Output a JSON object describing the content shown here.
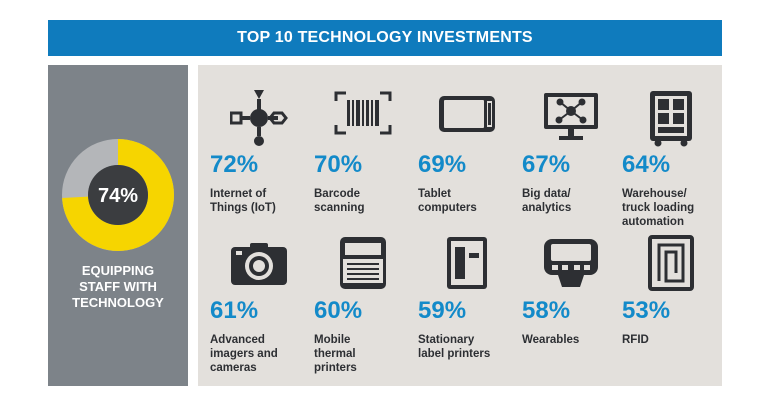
{
  "header": {
    "title": "TOP 10 TECHNOLOGY INVESTMENTS"
  },
  "summary": {
    "percent_label": "74%",
    "value": 74,
    "label_lines": [
      "EQUIPPING",
      "STAFF WITH",
      "TECHNOLOGY"
    ]
  },
  "chart_data": {
    "type": "table",
    "title": "TOP 10 TECHNOLOGY INVESTMENTS",
    "colors": {
      "accent": "#138ac9",
      "donut_fill": "#f6d500",
      "donut_track": "#b4b6b9",
      "donut_center": "#3b3d40"
    },
    "items": [
      {
        "value": 72,
        "pct_label": "72%",
        "label_lines": [
          "Internet of",
          "Things (IoT)"
        ],
        "icon": "iot-icon"
      },
      {
        "value": 70,
        "pct_label": "70%",
        "label_lines": [
          "Barcode",
          "scanning"
        ],
        "icon": "barcode-icon"
      },
      {
        "value": 69,
        "pct_label": "69%",
        "label_lines": [
          "Tablet",
          "computers"
        ],
        "icon": "tablet-icon"
      },
      {
        "value": 67,
        "pct_label": "67%",
        "label_lines": [
          "Big data/",
          "analytics"
        ],
        "icon": "analytics-monitor-icon"
      },
      {
        "value": 64,
        "pct_label": "64%",
        "label_lines": [
          "Warehouse/",
          "truck loading",
          "automation"
        ],
        "icon": "truck-loading-icon"
      },
      {
        "value": 61,
        "pct_label": "61%",
        "label_lines": [
          "Advanced",
          "imagers and",
          "cameras"
        ],
        "icon": "camera-icon"
      },
      {
        "value": 60,
        "pct_label": "60%",
        "label_lines": [
          "Mobile",
          "thermal",
          "printers"
        ],
        "icon": "mobile-printer-icon"
      },
      {
        "value": 59,
        "pct_label": "59%",
        "label_lines": [
          "Stationary",
          "label printers"
        ],
        "icon": "label-printer-icon"
      },
      {
        "value": 58,
        "pct_label": "58%",
        "label_lines": [
          "Wearables"
        ],
        "icon": "wearable-icon"
      },
      {
        "value": 53,
        "pct_label": "53%",
        "label_lines": [
          "RFID"
        ],
        "icon": "rfid-icon"
      }
    ]
  }
}
